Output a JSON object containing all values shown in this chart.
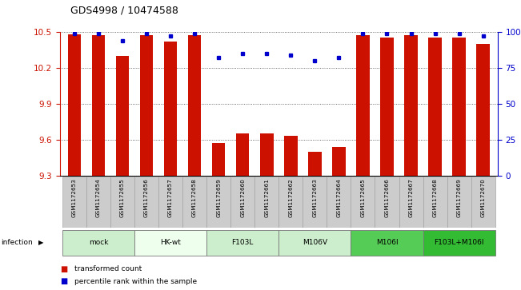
{
  "title": "GDS4998 / 10474588",
  "samples": [
    "GSM1172653",
    "GSM1172654",
    "GSM1172655",
    "GSM1172656",
    "GSM1172657",
    "GSM1172658",
    "GSM1172659",
    "GSM1172660",
    "GSM1172661",
    "GSM1172662",
    "GSM1172663",
    "GSM1172664",
    "GSM1172665",
    "GSM1172666",
    "GSM1172667",
    "GSM1172668",
    "GSM1172669",
    "GSM1172670"
  ],
  "red_values": [
    10.48,
    10.47,
    10.3,
    10.47,
    10.42,
    10.47,
    9.57,
    9.65,
    9.65,
    9.63,
    9.5,
    9.54,
    10.47,
    10.45,
    10.47,
    10.45,
    10.45,
    10.4
  ],
  "blue_percentiles": [
    99,
    99,
    94,
    99,
    97,
    99,
    82,
    85,
    85,
    84,
    80,
    82,
    99,
    99,
    99,
    99,
    99,
    97
  ],
  "groups": [
    {
      "label": "mock",
      "start": 0,
      "end": 2,
      "color": "#cceecc"
    },
    {
      "label": "HK-wt",
      "start": 3,
      "end": 5,
      "color": "#eeffee"
    },
    {
      "label": "F103L",
      "start": 6,
      "end": 8,
      "color": "#cceecc"
    },
    {
      "label": "M106V",
      "start": 9,
      "end": 11,
      "color": "#cceecc"
    },
    {
      "label": "M106I",
      "start": 12,
      "end": 14,
      "color": "#55cc55"
    },
    {
      "label": "F103L+M106I",
      "start": 15,
      "end": 17,
      "color": "#33bb33"
    }
  ],
  "ylim_left": [
    9.3,
    10.5
  ],
  "ylim_right": [
    0,
    100
  ],
  "yticks_left": [
    9.3,
    9.6,
    9.9,
    10.2,
    10.5
  ],
  "yticks_right": [
    0,
    25,
    50,
    75,
    100
  ],
  "bar_color": "#cc1100",
  "dot_color": "#0000cc",
  "bar_width": 0.55,
  "background_color": "#ffffff",
  "grid_color": "#000000",
  "cell_bg": "#cccccc"
}
